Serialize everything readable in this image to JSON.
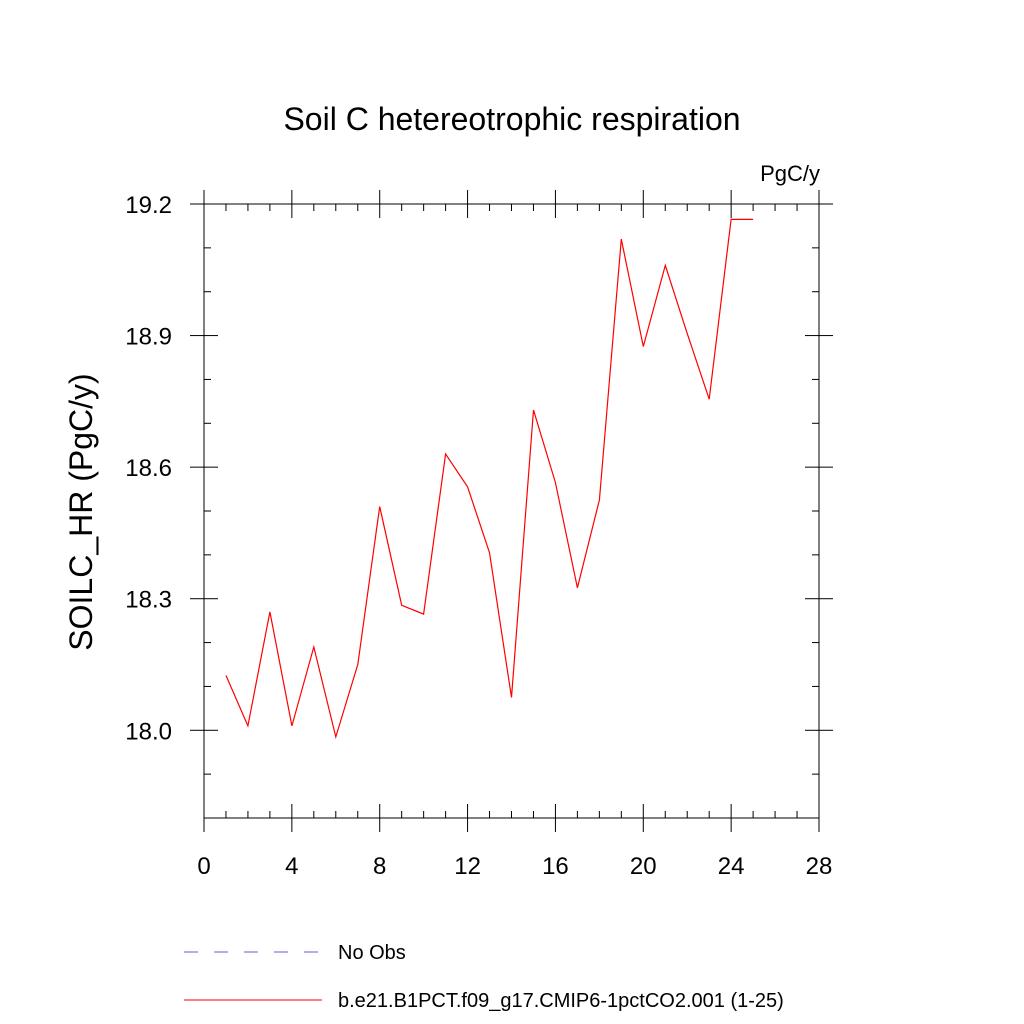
{
  "chart_data": {
    "type": "line",
    "title": "Soil C hetereotrophic respiration",
    "units_label": "PgC/y",
    "ylabel": "SOILC_HR  (PgC/y)",
    "xlabel": "",
    "xlim": [
      0,
      28
    ],
    "ylim": [
      17.8,
      19.2
    ],
    "x_ticks": [
      0,
      4,
      8,
      12,
      16,
      20,
      24,
      28
    ],
    "x_tick_labels": [
      "0",
      "4",
      "8",
      "12",
      "16",
      "20",
      "24",
      "28"
    ],
    "y_ticks": [
      18.0,
      18.3,
      18.6,
      18.9,
      19.2
    ],
    "y_tick_labels": [
      "18.0",
      "18.3",
      "18.6",
      "18.9",
      "19.2"
    ],
    "x_minor_step": 1,
    "y_minor_step": 0.1,
    "grid": false,
    "legend_position": "bottom",
    "series": [
      {
        "name": "b.e21.B1PCT.f09_g17.CMIP6-1pctCO2.001 (1-25)",
        "color": "#ff0000",
        "style": "solid",
        "x": [
          1,
          2,
          3,
          4,
          5,
          6,
          7,
          8,
          9,
          10,
          11,
          12,
          13,
          14,
          15,
          16,
          17,
          18,
          19,
          20,
          21,
          22,
          23,
          24,
          25
        ],
        "values": [
          18.125,
          18.01,
          18.27,
          18.01,
          18.19,
          17.985,
          18.15,
          18.51,
          18.285,
          18.265,
          18.63,
          18.555,
          18.405,
          18.075,
          18.73,
          18.565,
          18.325,
          18.525,
          19.12,
          18.875,
          19.06,
          18.905,
          18.755,
          19.165,
          19.165
        ]
      }
    ],
    "legend": [
      {
        "label": "No Obs",
        "color": "#6a5acd",
        "style": "dashed"
      },
      {
        "label": "b.e21.B1PCT.f09_g17.CMIP6-1pctCO2.001 (1-25)",
        "color": "#ff0000",
        "style": "solid"
      }
    ]
  }
}
